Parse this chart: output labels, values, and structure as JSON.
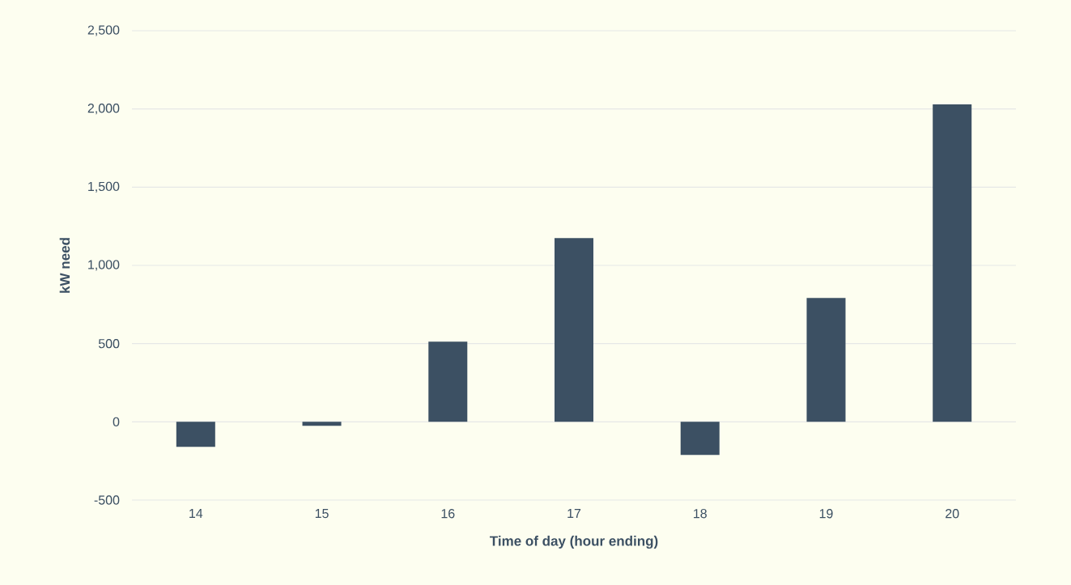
{
  "chart_data": {
    "type": "bar",
    "xlabel": "Time of day (hour ending)",
    "ylabel": "kW need",
    "categories": [
      "14",
      "15",
      "16",
      "17",
      "18",
      "19",
      "20"
    ],
    "values": [
      -160,
      -26,
      512,
      1175,
      -212,
      792,
      2029
    ],
    "color": "#3c5063",
    "ylim": [
      -500,
      2500
    ],
    "yticks": [
      -500,
      0,
      500,
      {
        "value": 1000,
        "label": "1,000"
      },
      {
        "value": 1500,
        "label": "1,500"
      },
      {
        "value": 2000,
        "label": "2,000"
      },
      {
        "value": 2500,
        "label": "2,500"
      }
    ],
    "grid": "y"
  }
}
